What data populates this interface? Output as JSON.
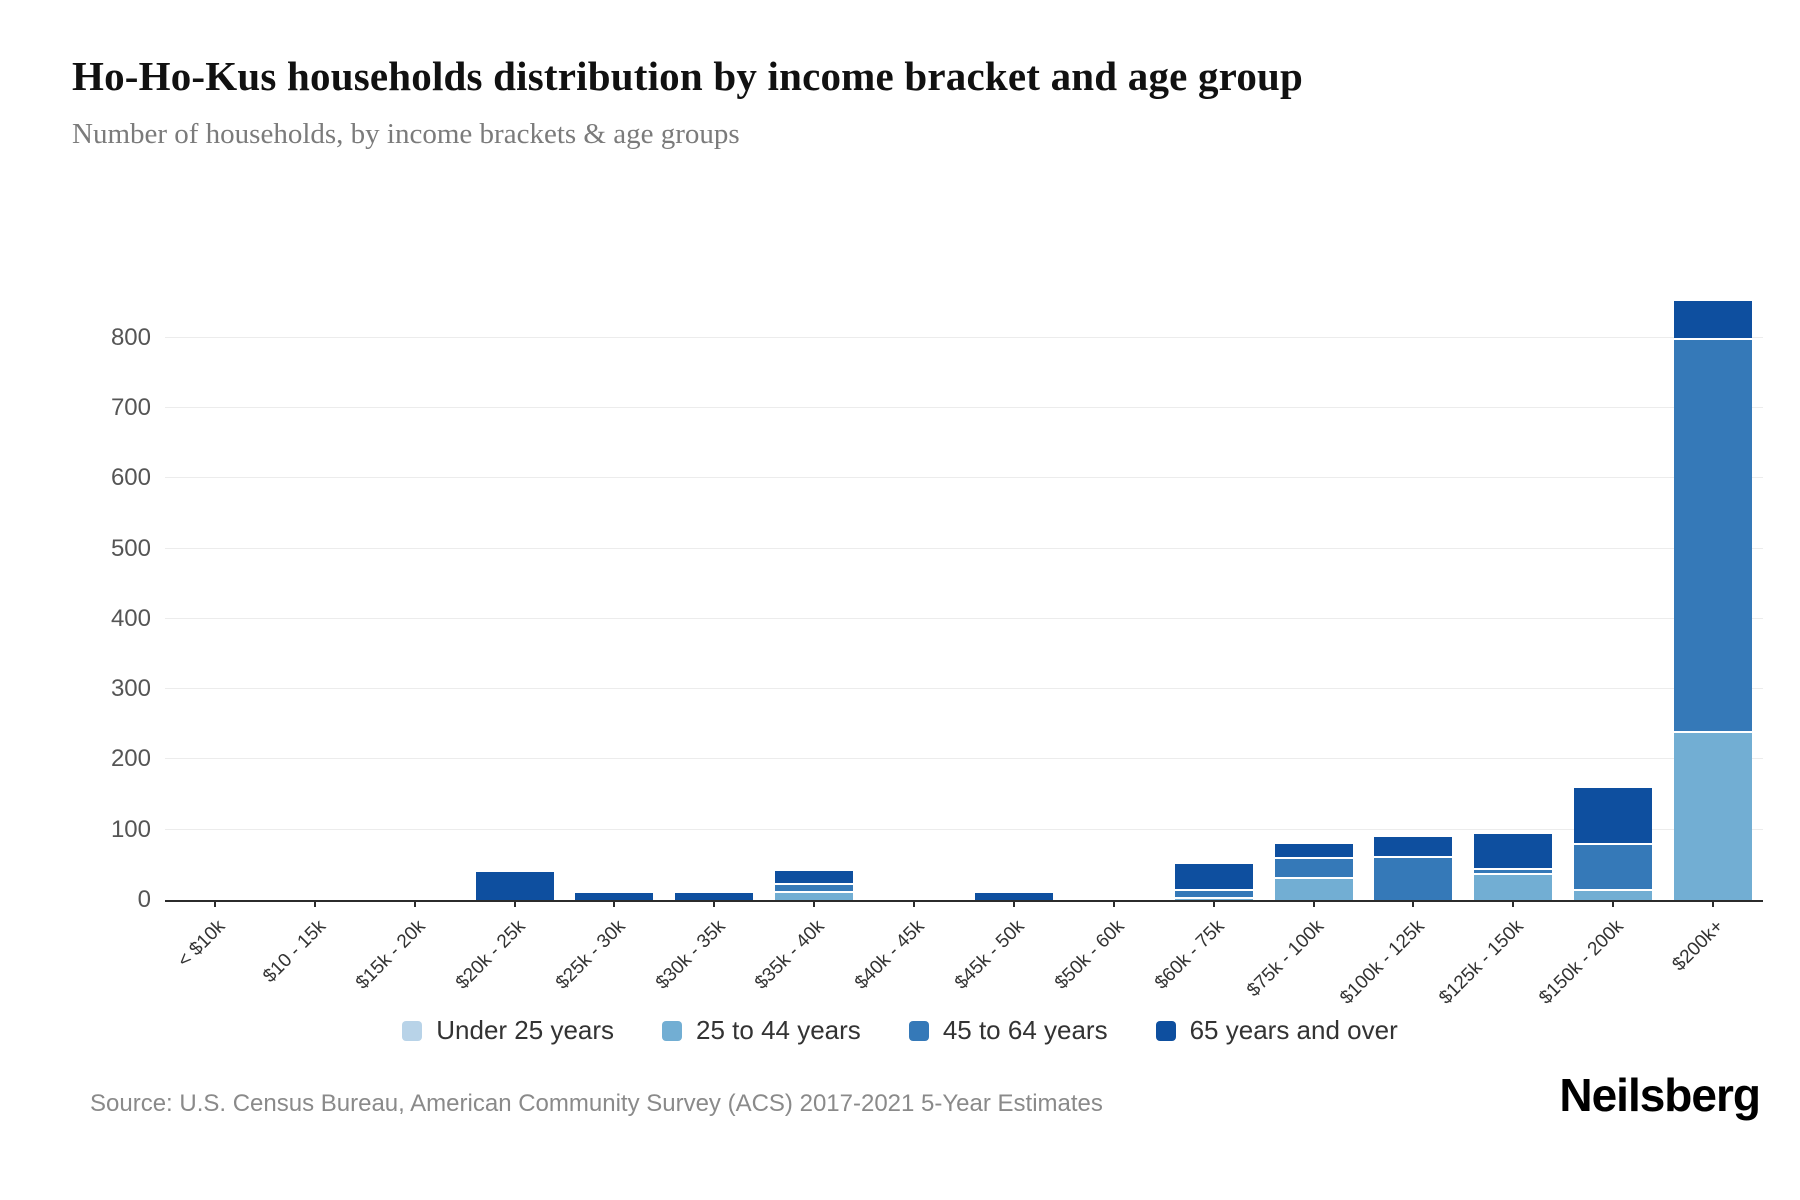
{
  "chart_data": {
    "type": "bar",
    "stacked": true,
    "title": "Ho-Ho-Kus households distribution by income bracket and age group",
    "subtitle": "Number of households, by income brackets & age groups",
    "xlabel": "",
    "ylabel": "",
    "ylim": [
      0,
      860
    ],
    "y_tick_step": 100,
    "grid": true,
    "legend_position": "bottom",
    "categories": [
      "< $10k",
      "$10 - 15k",
      "$15k - 20k",
      "$20k - 25k",
      "$25k - 30k",
      "$30k - 35k",
      "$35k - 40k",
      "$40k - 45k",
      "$45k - 50k",
      "$50k - 60k",
      "$60k - 75k",
      "$75k - 100k",
      "$100k - 125k",
      "$125k - 150k",
      "$150k - 200k",
      "$200k+"
    ],
    "series": [
      {
        "name": "Under 25 years",
        "color": "#b8d3e8",
        "values": [
          0,
          0,
          0,
          0,
          0,
          0,
          0,
          0,
          0,
          0,
          0,
          0,
          0,
          0,
          0,
          0
        ]
      },
      {
        "name": "25 to 44 years",
        "color": "#72aed3",
        "values": [
          0,
          0,
          0,
          0,
          0,
          0,
          13,
          0,
          0,
          0,
          4,
          33,
          0,
          38,
          15,
          240
        ]
      },
      {
        "name": "45 to 64 years",
        "color": "#3579b8",
        "values": [
          0,
          0,
          0,
          0,
          0,
          0,
          11,
          0,
          0,
          0,
          11,
          28,
          62,
          7,
          66,
          560
        ]
      },
      {
        "name": "65 years and over",
        "color": "#0e4f9f",
        "values": [
          0,
          0,
          0,
          40,
          10,
          10,
          18,
          0,
          10,
          0,
          36,
          19,
          28,
          49,
          78,
          53
        ]
      }
    ]
  },
  "footer": {
    "source": "Source: U.S. Census Bureau, American Community Survey (ACS) 2017-2021 5-Year Estimates",
    "brand": "Neilsberg"
  }
}
